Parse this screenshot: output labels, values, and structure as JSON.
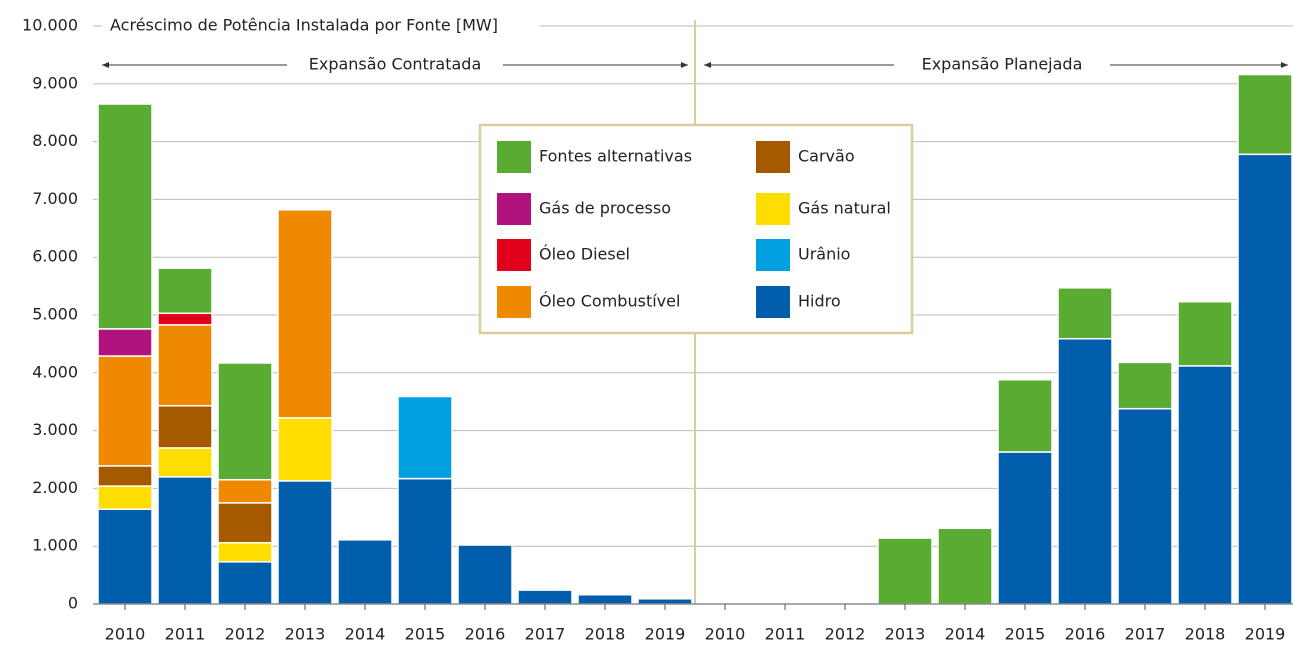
{
  "chart_data": {
    "type": "stacked_bar",
    "title": "Acréscimo de Potência Instalada por Fonte [MW]",
    "annotations": [
      "Expansão Contratada",
      "Expansão Planejada"
    ],
    "categories": [
      "2010",
      "2011",
      "2012",
      "2013",
      "2014",
      "2015",
      "2016",
      "2017",
      "2018",
      "2019",
      "2010",
      "2011",
      "2012",
      "2013",
      "2014",
      "2015",
      "2016",
      "2017",
      "2018",
      "2019"
    ],
    "series": [
      {
        "name": "Hidro",
        "color": "#005ead",
        "values": [
          1640,
          2200,
          730,
          2130,
          1110,
          2170,
          1020,
          240,
          160,
          90,
          null,
          null,
          null,
          null,
          null,
          2630,
          4590,
          3380,
          4120,
          7780
        ]
      },
      {
        "name": "Urânio",
        "color": "#00a0e0",
        "values": [
          null,
          null,
          null,
          null,
          null,
          1420,
          null,
          null,
          null,
          null,
          null,
          null,
          null,
          null,
          null,
          null,
          null,
          null,
          null,
          null
        ]
      },
      {
        "name": "Gás natural",
        "color": "#ffdd00",
        "values": [
          400,
          500,
          330,
          1090,
          null,
          null,
          null,
          null,
          null,
          null,
          null,
          null,
          null,
          null,
          null,
          null,
          null,
          null,
          null,
          null
        ]
      },
      {
        "name": "Carvão",
        "color": "#a55a00",
        "values": [
          350,
          730,
          690,
          null,
          null,
          null,
          null,
          null,
          null,
          null,
          null,
          null,
          null,
          null,
          null,
          null,
          null,
          null,
          null,
          null
        ]
      },
      {
        "name": "Óleo Combustível",
        "color": "#ef8a00",
        "values": [
          1900,
          1400,
          400,
          3600,
          null,
          null,
          null,
          null,
          null,
          null,
          null,
          null,
          null,
          null,
          null,
          null,
          null,
          null,
          null,
          null
        ]
      },
      {
        "name": "Óleo Diesel",
        "color": "#e2001a",
        "values": [
          null,
          200,
          null,
          null,
          null,
          null,
          null,
          null,
          null,
          null,
          null,
          null,
          null,
          null,
          null,
          null,
          null,
          null,
          null,
          null
        ]
      },
      {
        "name": "Gás de processo",
        "color": "#b0127e",
        "values": [
          470,
          null,
          null,
          null,
          null,
          null,
          null,
          null,
          null,
          null,
          null,
          null,
          null,
          null,
          null,
          null,
          null,
          null,
          null,
          null
        ]
      },
      {
        "name": "Fontes alternativas",
        "color": "#5aab31",
        "values": [
          3890,
          780,
          2020,
          null,
          null,
          null,
          null,
          null,
          null,
          null,
          null,
          null,
          null,
          1140,
          1310,
          1250,
          880,
          800,
          1110,
          1380
        ]
      }
    ],
    "ylim": [
      0,
      10000
    ],
    "yticks": [
      0,
      {
        "value": 1000,
        "label": "1.000"
      },
      {
        "value": 2000,
        "label": "2.000"
      },
      {
        "value": 3000,
        "label": "3.000"
      },
      {
        "value": 4000,
        "label": "4.000"
      },
      {
        "value": 5000,
        "label": "5.000"
      },
      {
        "value": 6000,
        "label": "6.000"
      },
      {
        "value": 7000,
        "label": "7.000"
      },
      {
        "value": 8000,
        "label": "8.000"
      },
      {
        "value": 9000,
        "label": "9.000"
      },
      {
        "value": 10000,
        "label": "10.000"
      }
    ],
    "grid": true
  }
}
